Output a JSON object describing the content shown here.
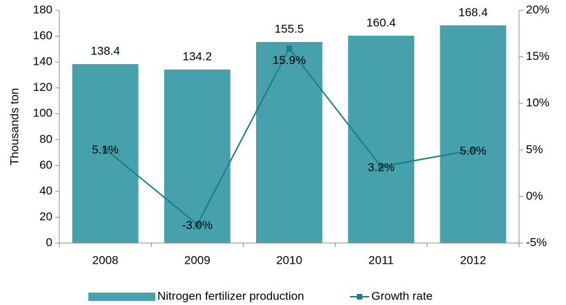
{
  "chart_data": {
    "type": "bar+line",
    "y_label": "Thousands ton",
    "categories": [
      "2008",
      "2009",
      "2010",
      "2011",
      "2012"
    ],
    "series": [
      {
        "name": "Nitrogen fertilizer production",
        "type": "bar",
        "color": "#47a1ad",
        "values": [
          138.4,
          134.2,
          155.5,
          160.4,
          168.4
        ]
      },
      {
        "name": "Growth rate",
        "type": "line",
        "axis": "y2",
        "color": "#1b7c8d",
        "values": [
          5.1,
          -3.0,
          15.9,
          3.2,
          5.0
        ],
        "value_labels": [
          "5.1%",
          "-3.0%",
          "15.9%",
          "3.2%",
          "5.0%"
        ]
      }
    ],
    "ylim": [
      0,
      180
    ],
    "yticks": [
      0,
      20,
      40,
      60,
      80,
      100,
      120,
      140,
      160,
      180
    ],
    "y2lim": [
      -5,
      20
    ],
    "y2ticks": [
      {
        "value": -5,
        "label": "-5%"
      },
      {
        "value": 0,
        "label": "0%"
      },
      {
        "value": 5,
        "label": "5%"
      },
      {
        "value": 10,
        "label": "10%"
      },
      {
        "value": 15,
        "label": "15%"
      },
      {
        "value": 20,
        "label": "20%"
      }
    ],
    "legend": "bottom"
  }
}
